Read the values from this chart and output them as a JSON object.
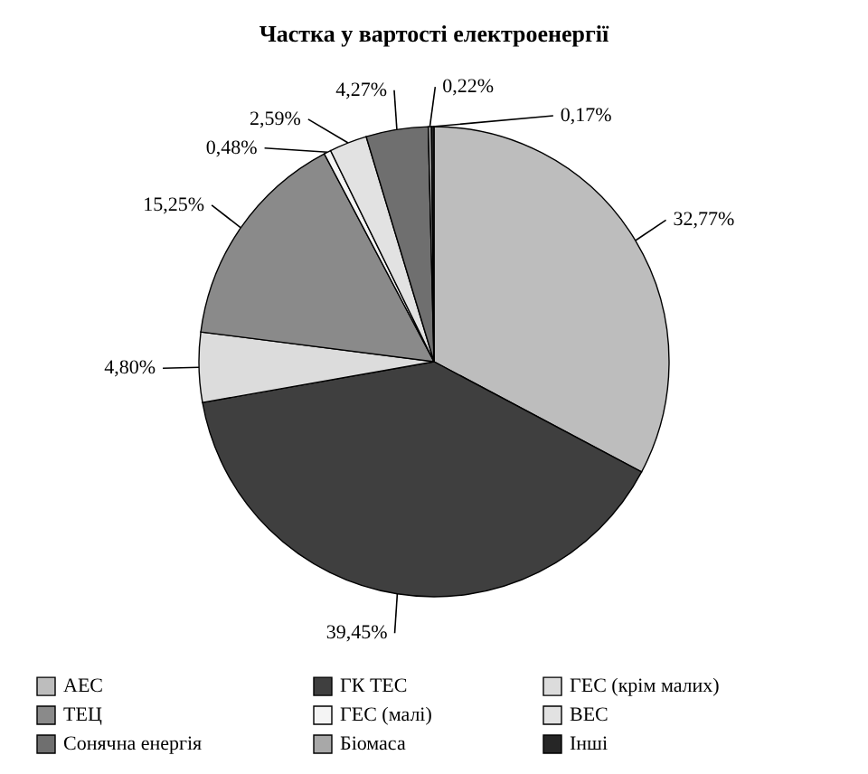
{
  "chart_data": {
    "type": "pie",
    "title": "Частка у вартості електроенергії",
    "categories": [
      "АЕС",
      "ГК ТЕС",
      "ГЕС (крім малих)",
      "ТЕЦ",
      "ГЕС (малі)",
      "ВЕС",
      "Сонячна енергія",
      "Біомаса",
      "Інші"
    ],
    "values": [
      32.77,
      39.45,
      4.8,
      15.25,
      0.48,
      2.59,
      4.27,
      0.22,
      0.17
    ],
    "value_labels": [
      "32,77%",
      "39,45%",
      "4,80%",
      "15,25%",
      "0,48%",
      "2,59%",
      "4,27%",
      "0,22%",
      "0,17%"
    ],
    "colors": [
      "#bdbdbd",
      "#3f3f3f",
      "#dcdcdc",
      "#8a8a8a",
      "#f4f4f4",
      "#e2e2e2",
      "#6f6f6f",
      "#a8a8a8",
      "#262626"
    ],
    "legend": "bottom"
  }
}
